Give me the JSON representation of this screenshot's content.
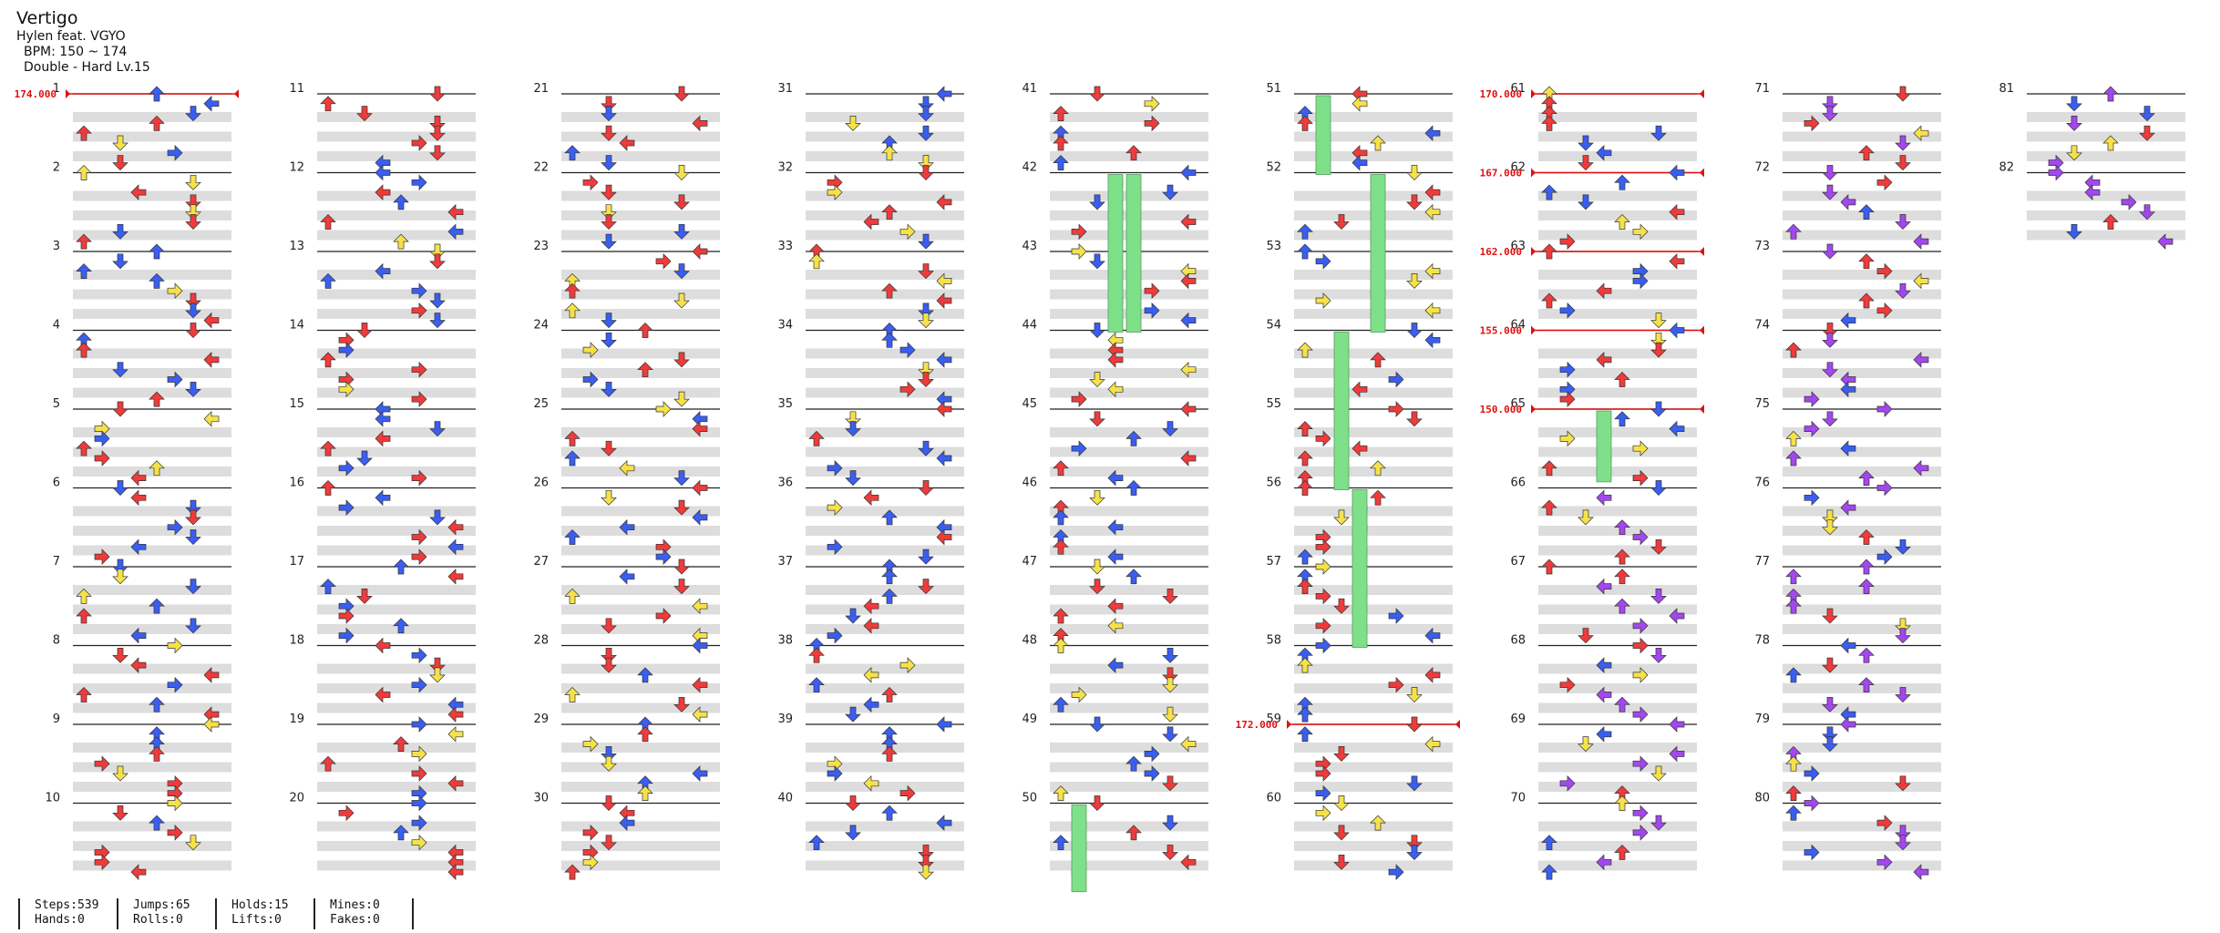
{
  "song": {
    "title": "Vertigo",
    "artist": "Hylen feat. VGYO",
    "bpm_line": "BPM: 150 ~ 174",
    "difficulty_line": "Double - Hard  Lv.15"
  },
  "columns": [
    {
      "measures": [
        1,
        2,
        3,
        4,
        5,
        6,
        7,
        8,
        9,
        10
      ]
    },
    {
      "measures": [
        11,
        12,
        13,
        14,
        15,
        16,
        17,
        18,
        19,
        20
      ]
    },
    {
      "measures": [
        21,
        22,
        23,
        24,
        25,
        26,
        27,
        28,
        29,
        30
      ]
    },
    {
      "measures": [
        31,
        32,
        33,
        34,
        35,
        36,
        37,
        38,
        39,
        40
      ]
    },
    {
      "measures": [
        41,
        42,
        43,
        44,
        45,
        46,
        47,
        48,
        49,
        50
      ]
    },
    {
      "measures": [
        51,
        52,
        53,
        54,
        55,
        56,
        57,
        58,
        59,
        60
      ]
    },
    {
      "measures": [
        61,
        62,
        63,
        64,
        65,
        66,
        67,
        68,
        69,
        70
      ]
    },
    {
      "measures": [
        71,
        72,
        73,
        74,
        75,
        76,
        77,
        78,
        79,
        80
      ]
    },
    {
      "measures": [
        81,
        82
      ]
    }
  ],
  "bpm_changes": [
    {
      "measure": 1,
      "label": "174.000"
    },
    {
      "measure": 59,
      "label": "172.000"
    },
    {
      "measure": 61,
      "label": "170.000"
    },
    {
      "measure": 62,
      "label": "167.000"
    },
    {
      "measure": 63,
      "label": "162.000"
    },
    {
      "measure": 64,
      "label": "155.000"
    },
    {
      "measure": 65,
      "label": "150.000"
    }
  ],
  "colors": {
    "quarter": "#ee3b3b",
    "eighth": "#3a5ef0",
    "sixteenth": "#f5e24a",
    "twelfth": "#a347ee",
    "hold": "#7fe08a",
    "bpm": "#e01010",
    "band": "#dddddd"
  },
  "stats": {
    "steps": "Steps:539",
    "hands": "Hands:0",
    "jumps": "Jumps:65",
    "rolls": "Rolls:0",
    "holds": "Holds:15",
    "lifts": "Lifts:0",
    "mines": "Mines:0",
    "fakes": "Fakes:0"
  }
}
